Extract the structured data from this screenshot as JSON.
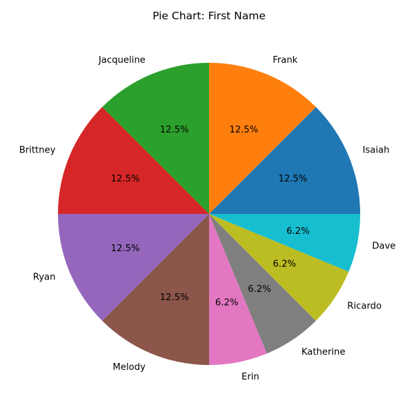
{
  "chart_data": {
    "type": "pie",
    "title": "Pie Chart: First Name",
    "start_angle_deg": 0,
    "direction": "counterclockwise",
    "slices": [
      {
        "label": "Isaiah",
        "value": 12.5,
        "pct_text": "12.5%",
        "color": "#1f77b4"
      },
      {
        "label": "Frank",
        "value": 12.5,
        "pct_text": "12.5%",
        "color": "#ff7f0e"
      },
      {
        "label": "Jacqueline",
        "value": 12.5,
        "pct_text": "12.5%",
        "color": "#2ca02c"
      },
      {
        "label": "Brittney",
        "value": 12.5,
        "pct_text": "12.5%",
        "color": "#d62728"
      },
      {
        "label": "Ryan",
        "value": 12.5,
        "pct_text": "12.5%",
        "color": "#9467bd"
      },
      {
        "label": "Melody",
        "value": 12.5,
        "pct_text": "12.5%",
        "color": "#8c564b"
      },
      {
        "label": "Erin",
        "value": 6.25,
        "pct_text": "6.2%",
        "color": "#e377c2"
      },
      {
        "label": "Katherine",
        "value": 6.25,
        "pct_text": "6.2%",
        "color": "#7f7f7f"
      },
      {
        "label": "Ricardo",
        "value": 6.25,
        "pct_text": "6.2%",
        "color": "#bcbd22"
      },
      {
        "label": "Dave",
        "value": 6.25,
        "pct_text": "6.2%",
        "color": "#17becf"
      }
    ]
  }
}
